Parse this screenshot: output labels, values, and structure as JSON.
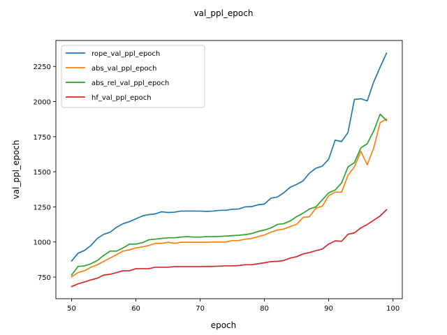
{
  "chart_data": {
    "type": "line",
    "title": "val_ppl_epoch",
    "xlabel": "epoch",
    "ylabel": "val_ppl_epoch",
    "xlim": [
      47.55,
      101.45
    ],
    "ylim": [
      596,
      2435
    ],
    "xticks": [
      50,
      60,
      70,
      80,
      90,
      100
    ],
    "yticks": [
      750,
      1000,
      1250,
      1500,
      1750,
      2000,
      2250
    ],
    "ytick_labels": [
      "750",
      "1000",
      "1250",
      "1500",
      "1750",
      "2000",
      "2250"
    ],
    "grid": false,
    "legend_position": "upper-left",
    "x": [
      50,
      51,
      52,
      53,
      54,
      55,
      56,
      57,
      58,
      59,
      60,
      61,
      62,
      63,
      64,
      65,
      66,
      67,
      68,
      69,
      70,
      71,
      72,
      73,
      74,
      75,
      76,
      77,
      78,
      79,
      80,
      81,
      82,
      83,
      84,
      85,
      86,
      87,
      88,
      89,
      90,
      91,
      92,
      93,
      94,
      95,
      96,
      97,
      98,
      99
    ],
    "series": [
      {
        "name": "rope_val_ppl_epoch",
        "color": "#1f77b4",
        "values": [
          865,
          920,
          940,
          975,
          1025,
          1055,
          1070,
          1105,
          1130,
          1145,
          1165,
          1185,
          1195,
          1200,
          1215,
          1210,
          1212,
          1220,
          1220,
          1220,
          1220,
          1218,
          1220,
          1225,
          1226,
          1233,
          1235,
          1250,
          1252,
          1265,
          1270,
          1312,
          1320,
          1350,
          1390,
          1410,
          1435,
          1490,
          1525,
          1540,
          1590,
          1725,
          1715,
          1780,
          2015,
          2020,
          2005,
          2140,
          2245,
          2345
        ]
      },
      {
        "name": "abs_val_ppl_epoch",
        "color": "#ff7f0e",
        "values": [
          752,
          782,
          795,
          820,
          838,
          862,
          886,
          910,
          935,
          944,
          958,
          965,
          975,
          990,
          990,
          998,
          990,
          998,
          998,
          998,
          998,
          998,
          1000,
          1000,
          1000,
          1010,
          1010,
          1020,
          1025,
          1038,
          1050,
          1070,
          1085,
          1092,
          1110,
          1125,
          1175,
          1180,
          1240,
          1255,
          1330,
          1355,
          1355,
          1475,
          1535,
          1645,
          1550,
          1670,
          1850,
          1875
        ]
      },
      {
        "name": "abs_rel_val_ppl_epoch",
        "color": "#2ca02c",
        "values": [
          765,
          826,
          830,
          845,
          868,
          905,
          935,
          935,
          958,
          985,
          985,
          995,
          1015,
          1020,
          1025,
          1030,
          1030,
          1035,
          1038,
          1035,
          1035,
          1038,
          1038,
          1040,
          1042,
          1045,
          1048,
          1052,
          1060,
          1075,
          1085,
          1100,
          1125,
          1130,
          1150,
          1180,
          1205,
          1235,
          1250,
          1300,
          1350,
          1370,
          1420,
          1535,
          1565,
          1670,
          1700,
          1790,
          1910,
          1865
        ]
      },
      {
        "name": "hf_val_ppl_epoch",
        "color": "#d62728",
        "values": [
          682,
          702,
          715,
          730,
          742,
          765,
          770,
          782,
          795,
          795,
          810,
          810,
          810,
          820,
          820,
          820,
          825,
          825,
          825,
          825,
          825,
          826,
          826,
          828,
          830,
          830,
          832,
          838,
          838,
          845,
          852,
          860,
          862,
          868,
          885,
          895,
          915,
          925,
          938,
          950,
          985,
          1008,
          1005,
          1055,
          1065,
          1100,
          1125,
          1155,
          1185,
          1230
        ]
      }
    ]
  }
}
